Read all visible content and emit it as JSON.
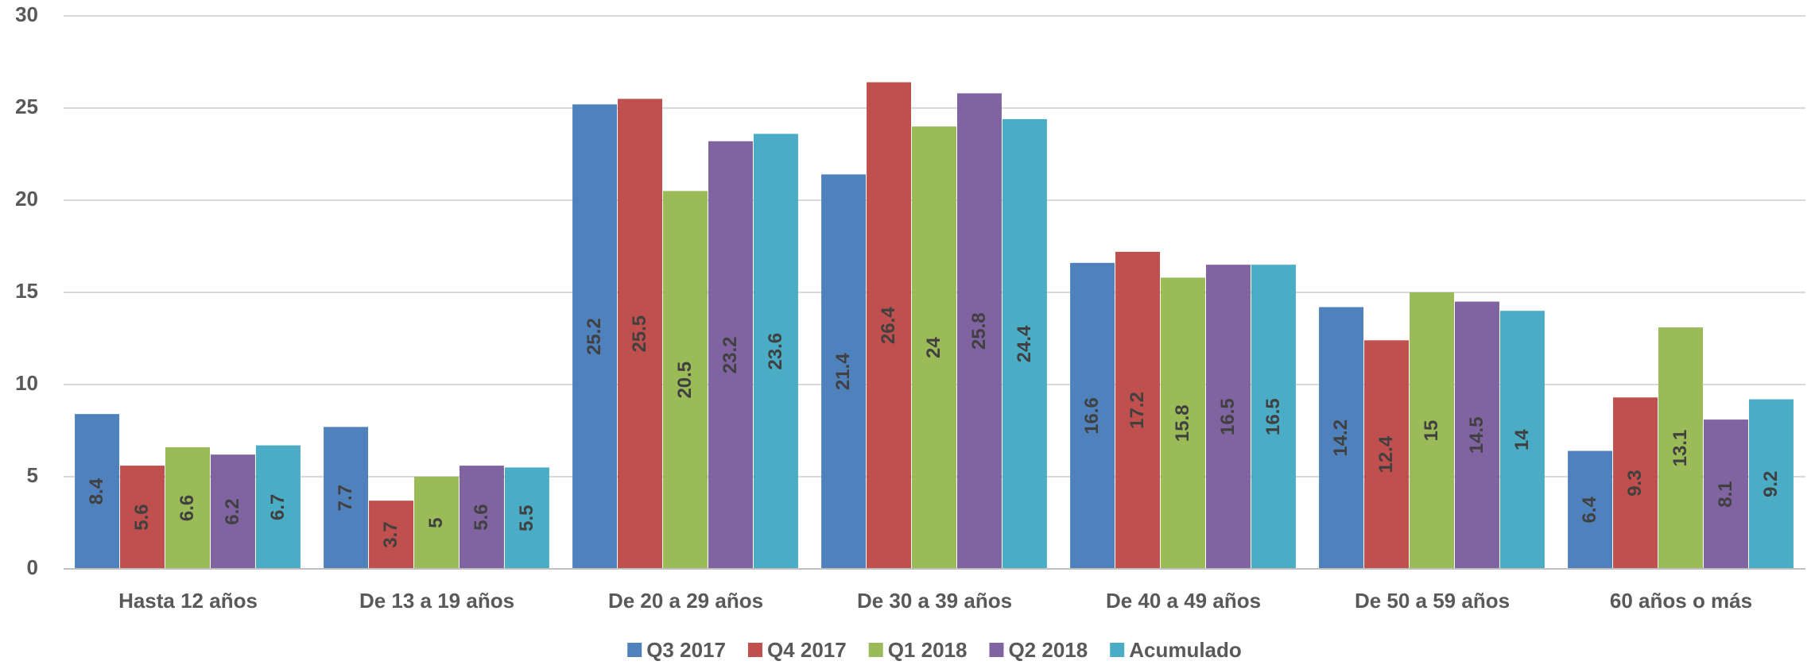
{
  "chart_data": {
    "type": "bar",
    "categories": [
      "Hasta 12 años",
      "De 13 a 19 años",
      "De 20 a 29 años",
      "De 30 a 39 años",
      "De 40 a 49 años",
      "De 50 a 59 años",
      "60 años o más"
    ],
    "series": [
      {
        "name": "Q3 2017",
        "color": "#4f81bd",
        "values": [
          8.4,
          7.7,
          25.2,
          21.4,
          16.6,
          14.2,
          6.4
        ]
      },
      {
        "name": "Q4 2017",
        "color": "#c0504d",
        "values": [
          5.6,
          3.7,
          25.5,
          26.4,
          17.2,
          12.4,
          9.3
        ]
      },
      {
        "name": "Q1 2018",
        "color": "#9bbb59",
        "values": [
          6.6,
          5,
          20.5,
          24,
          15.8,
          15,
          13.1
        ]
      },
      {
        "name": "Q2 2018",
        "color": "#8064a2",
        "values": [
          6.2,
          5.6,
          23.2,
          25.8,
          16.5,
          14.5,
          8.1
        ]
      },
      {
        "name": "Acumulado",
        "color": "#4bacc6",
        "values": [
          6.7,
          5.5,
          23.6,
          24.4,
          16.5,
          14,
          9.2
        ]
      }
    ],
    "ylim": [
      0,
      30
    ],
    "yticks": [
      0,
      5,
      10,
      15,
      20,
      25,
      30
    ],
    "grid": true,
    "legend": "bottom"
  }
}
